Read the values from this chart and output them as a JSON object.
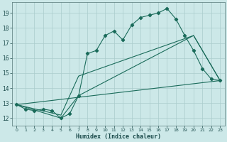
{
  "xlabel": "Humidex (Indice chaleur)",
  "bg_color": "#cce8e8",
  "grid_color": "#aacccc",
  "line_color": "#1a6b5a",
  "xlim": [
    -0.5,
    23.5
  ],
  "ylim": [
    11.5,
    19.7
  ],
  "yticks": [
    12,
    13,
    14,
    15,
    16,
    17,
    18,
    19
  ],
  "xticks": [
    0,
    1,
    2,
    3,
    4,
    5,
    6,
    7,
    8,
    9,
    10,
    11,
    12,
    13,
    14,
    15,
    16,
    17,
    18,
    19,
    20,
    21,
    22,
    23
  ],
  "line1_x": [
    0,
    1,
    2,
    3,
    4,
    5,
    6,
    7,
    8,
    9,
    10,
    11,
    12,
    13,
    14,
    15,
    16,
    17,
    18,
    19,
    20,
    21,
    22,
    23
  ],
  "line1_y": [
    12.9,
    12.6,
    12.5,
    12.6,
    12.5,
    12.0,
    12.3,
    13.5,
    16.3,
    16.5,
    17.5,
    17.8,
    17.2,
    18.2,
    18.7,
    18.85,
    19.0,
    19.3,
    18.6,
    17.5,
    16.5,
    15.3,
    14.6,
    14.5
  ],
  "line2_x": [
    0,
    23
  ],
  "line2_y": [
    12.9,
    14.5
  ],
  "line3_x": [
    0,
    5,
    7,
    20,
    23
  ],
  "line3_y": [
    12.9,
    12.0,
    13.5,
    17.5,
    14.5
  ],
  "line4_x": [
    0,
    5,
    7,
    20,
    23
  ],
  "line4_y": [
    12.9,
    12.2,
    14.8,
    17.5,
    14.5
  ]
}
